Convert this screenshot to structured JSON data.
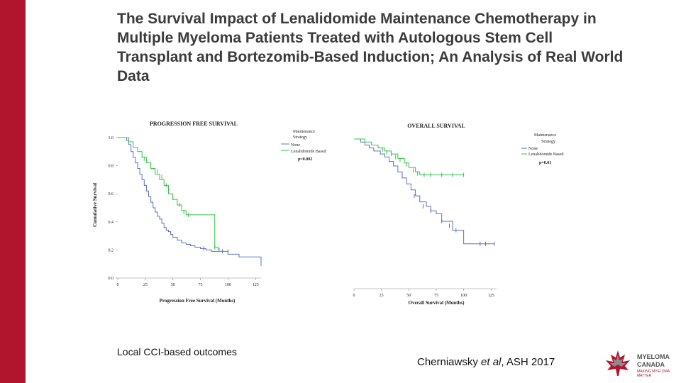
{
  "slide": {
    "title": "The Survival Impact of Lenalidomide Maintenance Chemotherapy in Multiple Myeloma Patients Treated with Autologous Stem Cell Transplant and Bortezomib-Based Induction; An Analysis of Real World Data",
    "footer_left": "Local CCI-based outcomes",
    "citation_pre": "Cherniawsky ",
    "citation_em": "et al",
    "citation_post": ", ASH 2017",
    "logo_line1": "MYELOMA",
    "logo_line2": "CANADA",
    "logo_tagline": "MAKING MYELOMA MATTER",
    "colors": {
      "accent": "#b0152d",
      "none": "#5b6fc6",
      "lenalidomide": "#34c34a"
    }
  },
  "chart_data": [
    {
      "type": "line",
      "subtype": "kaplan-meier",
      "title": "PROGRESSION FREE SURVIVAL",
      "xlabel": "Progression Free Survival (Months)",
      "ylabel": "Cumulative Survival",
      "xlim": [
        0,
        130
      ],
      "ylim": [
        0,
        1.0
      ],
      "xticks": [
        0,
        25,
        50,
        75,
        100,
        125
      ],
      "yticks": [
        0.0,
        0.2,
        0.4,
        0.6,
        0.8,
        1.0
      ],
      "ytick_labels": [
        "0.0",
        "0.2",
        "0.4",
        "0.6",
        "0.8",
        "1.0"
      ],
      "legend_title": "Maintenance Strategy",
      "legend_entries": [
        "None",
        "Lenalidomide Based"
      ],
      "p_value": "p=0.002",
      "series": [
        {
          "name": "None",
          "x": [
            0,
            8,
            10,
            12,
            14,
            16,
            18,
            20,
            22,
            24,
            26,
            28,
            30,
            32,
            34,
            36,
            38,
            40,
            42,
            44,
            46,
            48,
            50,
            54,
            58,
            62,
            66,
            70,
            75,
            80,
            85,
            100,
            110,
            130
          ],
          "y": [
            1.0,
            0.98,
            0.95,
            0.9,
            0.86,
            0.82,
            0.78,
            0.74,
            0.7,
            0.66,
            0.62,
            0.58,
            0.54,
            0.5,
            0.47,
            0.44,
            0.42,
            0.39,
            0.36,
            0.34,
            0.33,
            0.31,
            0.29,
            0.27,
            0.25,
            0.24,
            0.23,
            0.22,
            0.21,
            0.2,
            0.19,
            0.17,
            0.15,
            0.1
          ],
          "censored": [
            [
              78,
              0.21
            ],
            [
              95,
              0.19
            ],
            [
              100,
              0.19
            ],
            [
              130,
              0.1
            ]
          ]
        },
        {
          "name": "Lenalidomide Based",
          "x": [
            0,
            10,
            14,
            18,
            22,
            26,
            30,
            34,
            38,
            42,
            46,
            50,
            54,
            58,
            62,
            70,
            80,
            86,
            88,
            91
          ],
          "y": [
            1.0,
            0.97,
            0.93,
            0.9,
            0.86,
            0.82,
            0.78,
            0.74,
            0.7,
            0.66,
            0.6,
            0.56,
            0.52,
            0.48,
            0.45,
            0.45,
            0.45,
            0.45,
            0.22,
            0.2
          ],
          "censored": [
            [
              24,
              0.85
            ],
            [
              30,
              0.8
            ],
            [
              36,
              0.76
            ],
            [
              40,
              0.72
            ],
            [
              44,
              0.66
            ],
            [
              50,
              0.57
            ],
            [
              56,
              0.52
            ],
            [
              60,
              0.47
            ],
            [
              64,
              0.45
            ],
            [
              88,
              0.22
            ],
            [
              92,
              0.2
            ]
          ]
        }
      ]
    },
    {
      "type": "line",
      "subtype": "kaplan-meier",
      "title": "OVERALL SURVIVAL",
      "xlabel": "Overall Survival (Months)",
      "ylabel": "",
      "xlim": [
        0,
        130
      ],
      "ylim": [
        0,
        1.0
      ],
      "xticks": [
        0,
        25,
        50,
        75,
        100,
        125
      ],
      "legend_title": "Maintenance Strategy",
      "legend_entries": [
        "None",
        "Lenalidomide Based"
      ],
      "p_value": "p=0.01",
      "series": [
        {
          "name": "None",
          "x": [
            0,
            6,
            10,
            14,
            18,
            24,
            28,
            32,
            36,
            40,
            44,
            48,
            52,
            56,
            60,
            66,
            70,
            75,
            80,
            90,
            100,
            110,
            128
          ],
          "y": [
            1.0,
            0.98,
            0.96,
            0.94,
            0.92,
            0.9,
            0.88,
            0.85,
            0.82,
            0.78,
            0.74,
            0.7,
            0.66,
            0.62,
            0.58,
            0.55,
            0.52,
            0.5,
            0.45,
            0.39,
            0.3,
            0.3,
            0.3
          ],
          "censored": [
            [
              55,
              0.62
            ],
            [
              63,
              0.55
            ],
            [
              70,
              0.52
            ],
            [
              80,
              0.45
            ],
            [
              87,
              0.42
            ],
            [
              93,
              0.39
            ],
            [
              115,
              0.3
            ],
            [
              120,
              0.3
            ],
            [
              128,
              0.3
            ]
          ]
        },
        {
          "name": "Lenalidomide Based",
          "x": [
            0,
            10,
            16,
            22,
            28,
            34,
            40,
            46,
            50,
            56,
            60,
            100
          ],
          "y": [
            1.0,
            0.98,
            0.96,
            0.94,
            0.92,
            0.9,
            0.87,
            0.84,
            0.81,
            0.78,
            0.76,
            0.76
          ],
          "censored": [
            [
              26,
              0.93
            ],
            [
              30,
              0.91
            ],
            [
              34,
              0.9
            ],
            [
              38,
              0.88
            ],
            [
              42,
              0.86
            ],
            [
              48,
              0.83
            ],
            [
              54,
              0.79
            ],
            [
              58,
              0.77
            ],
            [
              64,
              0.76
            ],
            [
              70,
              0.76
            ],
            [
              80,
              0.76
            ],
            [
              90,
              0.76
            ],
            [
              100,
              0.76
            ]
          ]
        }
      ]
    }
  ]
}
